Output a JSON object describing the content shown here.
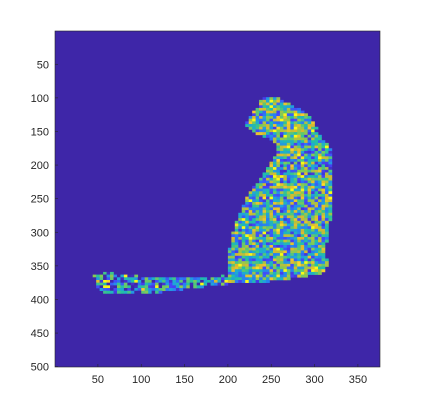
{
  "chart_data": {
    "type": "heatmap",
    "title": "",
    "xlabel": "",
    "ylabel": "",
    "image_size": {
      "columns": 375,
      "rows": 500
    },
    "xlim": [
      0.5,
      375.5
    ],
    "ylim": [
      0.5,
      500.5
    ],
    "y_direction": "reversed",
    "x_ticks": [
      50,
      100,
      150,
      200,
      250,
      300,
      350
    ],
    "y_ticks": [
      50,
      100,
      150,
      200,
      250,
      300,
      350,
      400,
      450,
      500
    ],
    "colormap": "parula",
    "colormap_stops": [
      "#3e26a8",
      "#4743f8",
      "#2b78f6",
      "#1fa8d7",
      "#23c2a0",
      "#7fcb58",
      "#d6ba2f",
      "#fcce2e",
      "#f9fb15"
    ],
    "background_color": "#3e26a8",
    "grid": false,
    "colorbar": false,
    "content_description_regions": [
      {
        "part": "head",
        "x": [
          225,
          300
        ],
        "y": [
          100,
          180
        ],
        "level": 0.55
      },
      {
        "part": "neck",
        "x": [
          250,
          318
        ],
        "y": [
          150,
          230
        ],
        "level": 0.45
      },
      {
        "part": "back",
        "x": [
          255,
          320
        ],
        "y": [
          200,
          330
        ],
        "level": 0.45
      },
      {
        "part": "body",
        "x": [
          195,
          315
        ],
        "y": [
          220,
          375
        ],
        "level": 0.5
      },
      {
        "part": "tail",
        "x": [
          42,
          200
        ],
        "y": [
          355,
          395
        ],
        "level": 0.2
      }
    ]
  }
}
